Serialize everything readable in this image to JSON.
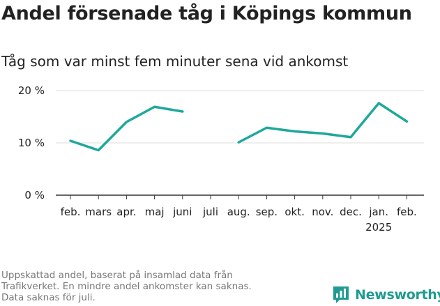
{
  "title": "Andel försenade tåg i Köpings kommun",
  "subtitle": "Tåg som var minst fem minuter sena vid ankomst",
  "footnote": [
    "Uppskattad andel, baserat på insamlad data från",
    "Trafikverket. En mindre andel ankomster kan saknas.",
    "Data saknas för juli."
  ],
  "brand": {
    "name": "Newsworthy",
    "icon": "newsworthy-logo-icon"
  },
  "colors": {
    "line": "#1fa89b",
    "grid": "#dddddd",
    "axis": "#333333",
    "text": "#222222",
    "muted": "#777777"
  },
  "chart_data": {
    "type": "line",
    "title": "Andel försenade tåg i Köpings kommun",
    "subtitle": "Tåg som var minst fem minuter sena vid ankomst",
    "xlabel": "",
    "ylabel": "",
    "ylim": [
      0,
      20
    ],
    "yticks": [
      {
        "value": 0,
        "label": "0 %"
      },
      {
        "value": 10,
        "label": "10 %"
      },
      {
        "value": 20,
        "label": "20 %"
      }
    ],
    "grid": true,
    "x": [
      "feb.",
      "mars",
      "apr.",
      "maj",
      "juni",
      "juli",
      "aug.",
      "sep.",
      "okt.",
      "nov.",
      "dec.",
      "jan.",
      "feb."
    ],
    "x_sublabels": [
      "",
      "",
      "",
      "",
      "",
      "",
      "",
      "",
      "",
      "",
      "",
      "2025",
      ""
    ],
    "series": [
      {
        "values": [
          10.4,
          8.6,
          14.0,
          16.9,
          16.0,
          null,
          10.1,
          12.9,
          12.2,
          11.8,
          11.1,
          17.6,
          14.1
        ]
      }
    ]
  }
}
